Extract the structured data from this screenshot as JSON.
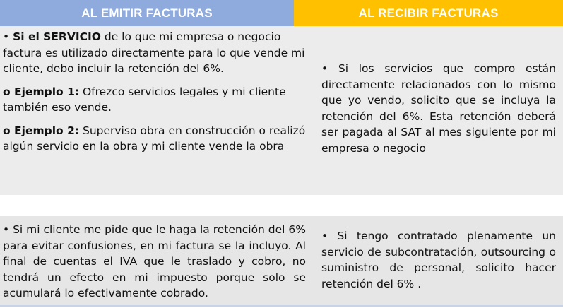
{
  "header": {
    "left_title": "AL EMITIR FACTURAS",
    "right_title": "AL RECIBIR FACTURAS"
  },
  "row1": {
    "left": {
      "p1_bullet": "• ",
      "p1_bold": "Si el SERVICIO",
      "p1_text": " de lo que mi empresa o negocio factura es utilizado directamente para lo que vende mi cliente, debo incluir la retención del 6%.",
      "p2_bold": "o Ejemplo 1:",
      "p2_text": " Ofrezco servicios legales y mi cliente también eso vende.",
      "p3_bold": "o Ejemplo 2:",
      "p3_text": " Superviso obra en construcción o realizó algún servicio en la obra y mi cliente vende la obra"
    },
    "right": {
      "text": "• Si los servicios que compro están directamente relacionados con lo mismo que yo vendo, solicito que se incluya la retención del 6%. Esta retención deberá ser pagada al SAT al mes siguiente por mi empresa o negocio"
    }
  },
  "row2": {
    "left": {
      "text": "• Si mi cliente me pide que le haga la retención del 6% para evitar confusiones, en mi factura se la incluyo. Al final de cuentas el IVA que le traslado y cobro, no tendrá un efecto en mi impuesto porque solo se acumulará lo efectivamente cobrado."
    },
    "right": {
      "text": "• Si tengo contratado plenamente un servicio de subcontratación, outsourcing o suministro de personal, solicito hacer retención del 6% ."
    }
  },
  "colors": {
    "left_header": "#8faadc",
    "right_header": "#ffc000",
    "row1_bg": "#ececec",
    "row2_bg": "#e6e6e6"
  }
}
